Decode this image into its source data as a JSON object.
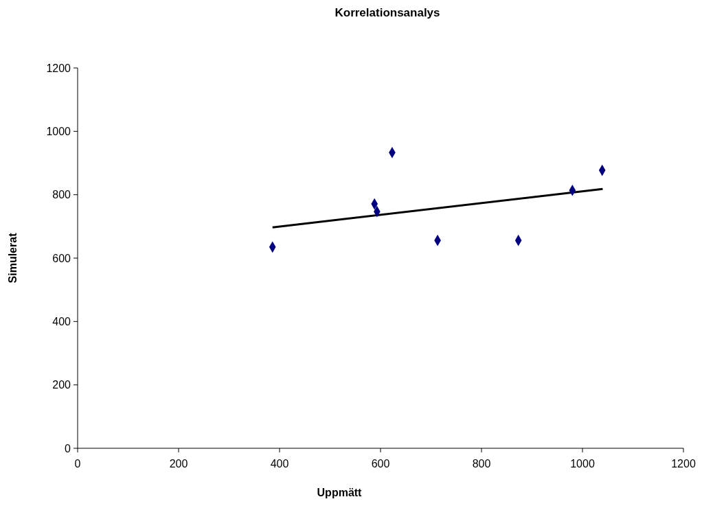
{
  "chart_data": {
    "type": "scatter",
    "title": "Korrelationsanalys",
    "xlabel": "Uppmätt",
    "ylabel": "Simulerat",
    "xlim": [
      0,
      1200
    ],
    "xticks": [
      0,
      200,
      400,
      600,
      800,
      1000,
      1200
    ],
    "ylim": [
      0,
      1200
    ],
    "yticks": [
      0,
      200,
      400,
      600,
      800,
      1000,
      1200
    ],
    "grid": false,
    "series": [
      {
        "color": "#000080",
        "marker": "diamond",
        "x": [
          386,
          588,
          593,
          623,
          713,
          873,
          980,
          1039
        ],
        "values": [
          635,
          771,
          747,
          933,
          656,
          656,
          814,
          877
        ]
      },
      {
        "type": "line",
        "color": "#000000",
        "x": [
          386,
          1040
        ],
        "values": [
          697,
          818
        ],
        "marker": "none",
        "line_style": "solid"
      }
    ]
  }
}
